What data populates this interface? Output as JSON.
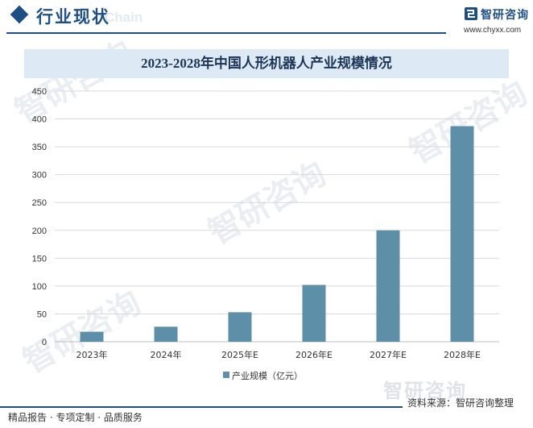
{
  "header": {
    "title": "行业现状",
    "watermark": "Chain",
    "brand_name": "智研咨询",
    "brand_url": "www.chyxx.com"
  },
  "chart_data": {
    "type": "bar",
    "title": "2023-2028年中国人形机器人产业规模情况",
    "categories": [
      "2023年",
      "2024年",
      "2025年E",
      "2026年E",
      "2027年E",
      "2028年E"
    ],
    "series": [
      {
        "name": "产业规模（亿元）",
        "values": [
          18,
          27,
          53,
          102,
          200,
          387
        ]
      }
    ],
    "ylim": [
      0,
      450
    ],
    "yticks": [
      0,
      50,
      100,
      150,
      200,
      250,
      300,
      350,
      400,
      450
    ],
    "grid": true,
    "legend": "bottom",
    "colors": {
      "bar": "#5d8fa8",
      "grid": "#d9d9d9",
      "axis": "#bfbfbf"
    }
  },
  "watermarks": [
    "智研咨询",
    "智研咨询",
    "智研咨询",
    "智研咨询"
  ],
  "footer": {
    "watermark": "智研咨询",
    "source": "资料来源：智研咨询整理",
    "tagline": "精品报告 · 专项定制 · 品质服务"
  }
}
